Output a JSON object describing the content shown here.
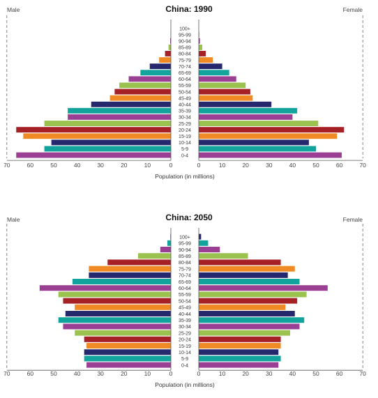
{
  "colors": {
    "ramp": [
      "#9b3f95",
      "#11a39c",
      "#26286e",
      "#f08a24",
      "#a62126",
      "#9bc14f"
    ],
    "axis": "#777777"
  },
  "chart_data": [
    {
      "type": "bar",
      "orientation": "horizontal-population-pyramid",
      "title": "China: 1990",
      "left_label": "Male",
      "right_label": "Female",
      "xlabel": "Population (in millions)",
      "xlim": [
        0,
        70
      ],
      "xticks": [
        "70",
        "60",
        "50",
        "40",
        "30",
        "20",
        "10",
        "0",
        "0",
        "10",
        "20",
        "30",
        "40",
        "50",
        "60",
        "70"
      ],
      "categories": [
        "0-4",
        "5-9",
        "10-14",
        "15-19",
        "20-24",
        "25-29",
        "30-34",
        "35-39",
        "40-44",
        "45-49",
        "50-54",
        "55-59",
        "60-64",
        "65-69",
        "70-74",
        "75-79",
        "80-84",
        "85-89",
        "90-94",
        "95-99",
        "100+"
      ],
      "series": [
        {
          "name": "Male",
          "values": [
            66,
            54,
            51,
            63,
            66,
            54,
            44,
            44,
            34,
            26,
            24,
            22,
            18,
            13,
            9,
            5,
            2.5,
            1,
            0.3,
            0.1,
            0
          ]
        },
        {
          "name": "Female",
          "values": [
            61,
            50,
            47,
            59,
            62,
            51,
            40,
            42,
            31,
            23,
            22,
            20,
            16,
            13,
            10,
            6,
            3,
            1.5,
            0.5,
            0.2,
            0
          ]
        }
      ]
    },
    {
      "type": "bar",
      "orientation": "horizontal-population-pyramid",
      "title": "China: 2050",
      "left_label": "Male",
      "right_label": "Female",
      "xlabel": "Population (in millions)",
      "xlim": [
        0,
        70
      ],
      "xticks": [
        "70",
        "60",
        "50",
        "40",
        "30",
        "20",
        "10",
        "0",
        "0",
        "10",
        "20",
        "30",
        "40",
        "50",
        "60",
        "70"
      ],
      "categories": [
        "0-4",
        "5-9",
        "10-14",
        "15-19",
        "20-24",
        "25-29",
        "30-34",
        "35-39",
        "40-44",
        "45-49",
        "50-54",
        "55-59",
        "60-64",
        "65-69",
        "70-74",
        "75-79",
        "80-84",
        "85-89",
        "90-94",
        "95-99",
        "100+"
      ],
      "series": [
        {
          "name": "Male",
          "values": [
            36,
            37,
            37,
            36,
            37,
            41,
            46,
            48,
            45,
            41,
            46,
            48,
            56,
            42,
            35,
            35,
            27,
            14,
            4.5,
            1.5,
            0.2
          ]
        },
        {
          "name": "Female",
          "values": [
            34,
            35,
            34,
            35,
            35,
            39,
            43,
            45,
            41,
            37,
            42,
            46,
            55,
            43,
            38,
            41,
            35,
            21,
            9,
            4,
            1
          ]
        }
      ]
    }
  ]
}
